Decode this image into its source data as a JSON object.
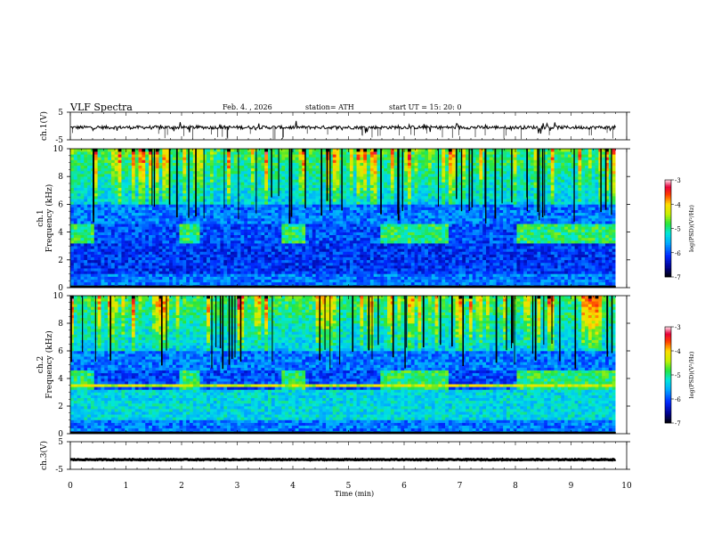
{
  "header": {
    "title": "VLF  Spectra",
    "date": "Feb. 4. , 2026",
    "station": "station= ATH",
    "start_ut": "start  UT  =   15: 20: 0"
  },
  "chart_data": [
    {
      "type": "line",
      "ylabel": "ch.1(V)",
      "ylim": [
        -5,
        5
      ],
      "yticks": [
        "5",
        "-5"
      ],
      "description_series": "waveform trace near -0.5 V with spikes",
      "xlim": [
        0,
        10
      ]
    },
    {
      "type": "heatmap",
      "ylabel_1": "ch.1",
      "ylabel_2": "Frequency  (kHz)",
      "ylim": [
        0,
        10
      ],
      "yticks": [
        "0",
        "2",
        "4",
        "6",
        "8",
        "10"
      ],
      "xlim": [
        0,
        9.8
      ],
      "colorbar": {
        "label": "log(PSD)(V²/Hz)",
        "range": [
          -7,
          -3
        ],
        "ticks": [
          "-3",
          "-4",
          "-5",
          "-6",
          "-7"
        ]
      },
      "transmitter_band_khz": 4,
      "transmitter_on_intervals_min": [
        [
          0,
          0.45
        ],
        [
          1.95,
          2.3
        ],
        [
          3.8,
          4.2
        ],
        [
          5.6,
          6.8
        ],
        [
          8.0,
          9.8
        ]
      ]
    },
    {
      "type": "heatmap",
      "ylabel_1": "ch.2",
      "ylabel_2": "Frequency  (kHz)",
      "ylim": [
        0,
        10
      ],
      "yticks": [
        "0",
        "2",
        "4",
        "6",
        "8",
        "10"
      ],
      "xlim": [
        0,
        9.8
      ],
      "colorbar": {
        "label": "log(PSD)(V²/Hz)",
        "range": [
          -7,
          -3
        ],
        "ticks": [
          "-3",
          "-4",
          "-5",
          "-6",
          "-7"
        ]
      },
      "transmitter_band_khz": 4,
      "transmitter_on_intervals_min": [
        [
          0,
          0.45
        ],
        [
          1.95,
          2.3
        ],
        [
          3.8,
          4.2
        ],
        [
          5.6,
          6.8
        ],
        [
          8.0,
          9.8
        ]
      ]
    },
    {
      "type": "line",
      "ylabel": "ch.3(V)",
      "ylim": [
        -5,
        5
      ],
      "yticks": [
        "5",
        "-5"
      ],
      "description_series": "flat trace at about -1.5 V",
      "xlim": [
        0,
        10
      ]
    }
  ],
  "x_axis": {
    "label": "Time  (min)",
    "ticks": [
      "0",
      "1",
      "2",
      "3",
      "4",
      "5",
      "6",
      "7",
      "8",
      "9",
      "10"
    ]
  }
}
